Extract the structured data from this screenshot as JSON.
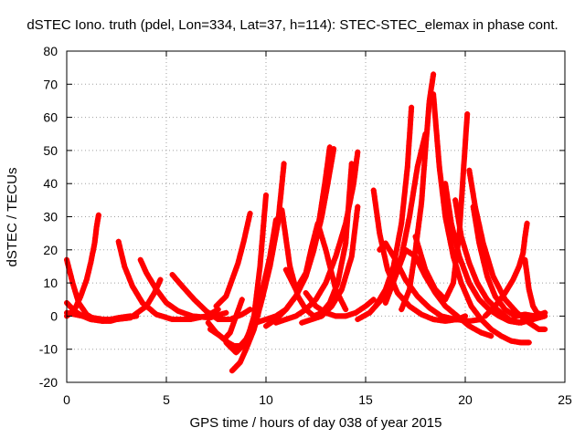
{
  "chart_data": {
    "type": "scatter",
    "title": "dSTEC Iono. truth (pdel, Lon=334, Lat=37, h=114): STEC-STEC_elemax in phase cont.",
    "xlabel": "GPS time / hours of day 038 of year 2015",
    "ylabel": "dSTEC  / TECUs",
    "xlim": [
      0,
      25
    ],
    "ylim": [
      -20,
      80
    ],
    "xticks": [
      0,
      5,
      10,
      15,
      20,
      25
    ],
    "yticks": [
      -20,
      -10,
      0,
      10,
      20,
      30,
      40,
      50,
      60,
      70,
      80
    ],
    "grid": true,
    "marker": "+",
    "color": "#ff0000",
    "arcs": [
      {
        "x": [
          0.0,
          0.3,
          0.6,
          1.0,
          1.4,
          1.8,
          2.2,
          2.8,
          3.5
        ],
        "y": [
          17,
          10,
          4,
          0.5,
          -1,
          -1.5,
          -1.5,
          -0.5,
          0
        ]
      },
      {
        "x": [
          0.0,
          0.4,
          0.8,
          1.2,
          1.8,
          2.6,
          3.2
        ],
        "y": [
          4,
          1.5,
          0,
          -1,
          -1.5,
          -0.5,
          0
        ]
      },
      {
        "x": [
          0.0,
          0.4,
          0.7,
          1.0,
          1.2,
          1.4,
          1.5,
          1.6
        ],
        "y": [
          0,
          2,
          6,
          11,
          16,
          22,
          27,
          30.5
        ]
      },
      {
        "x": [
          0.0,
          0.4,
          0.8,
          1.3,
          1.8,
          2.5,
          3.2,
          4.0,
          4.4,
          4.7
        ],
        "y": [
          1,
          0.5,
          0,
          -0.5,
          -1,
          -1,
          -0.5,
          3,
          7,
          11
        ]
      },
      {
        "x": [
          2.6,
          2.9,
          3.3,
          3.8,
          4.5,
          5.3,
          6.2,
          7.0,
          7.6
        ],
        "y": [
          22.5,
          15,
          9,
          4,
          0.5,
          -1,
          -1,
          0,
          2
        ]
      },
      {
        "x": [
          3.7,
          4.0,
          4.5,
          5.0,
          5.6,
          6.3,
          7.2,
          8.0
        ],
        "y": [
          17,
          13,
          8,
          4,
          1.5,
          0,
          -0.5,
          1
        ]
      },
      {
        "x": [
          5.3,
          5.8,
          6.4,
          7.0,
          7.6,
          8.2,
          8.8,
          9.2
        ],
        "y": [
          12.5,
          9,
          5,
          1.5,
          -1,
          -1,
          0.5,
          2
        ]
      },
      {
        "x": [
          7.1,
          7.5,
          7.9,
          8.2,
          8.5,
          8.8
        ],
        "y": [
          -2,
          -5,
          -7,
          -5,
          0,
          5
        ]
      },
      {
        "x": [
          7.2,
          7.7,
          8.1,
          8.4,
          8.7,
          9.0,
          9.3,
          9.6,
          9.9,
          10.2,
          10.5
        ],
        "y": [
          -4,
          -6,
          -8,
          -9,
          -9,
          -7,
          -3,
          3,
          10,
          18,
          29
        ]
      },
      {
        "x": [
          7.5,
          8.0,
          8.3,
          8.6,
          8.9,
          9.2
        ],
        "y": [
          3,
          6,
          11,
          16,
          23,
          31
        ]
      },
      {
        "x": [
          8.3,
          8.7,
          9.0,
          9.4,
          9.8,
          10.2,
          10.6,
          10.9
        ],
        "y": [
          -16.5,
          -14,
          -10,
          -4,
          5,
          15,
          28,
          46
        ]
      },
      {
        "x": [
          8.0,
          8.5,
          9.0,
          9.4,
          9.7,
          10.0
        ],
        "y": [
          -8,
          -11,
          -8,
          0,
          15,
          36.5
        ]
      },
      {
        "x": [
          9.5,
          10.0,
          10.5,
          11.0,
          11.5,
          12.0,
          12.4,
          12.8,
          13.1,
          13.4
        ],
        "y": [
          -2,
          -1,
          0,
          2,
          6,
          12,
          20,
          30,
          40,
          50.5
        ]
      },
      {
        "x": [
          10.0,
          10.5,
          11.0,
          11.5,
          12.0,
          12.4,
          12.7,
          13.0,
          13.2
        ],
        "y": [
          -3,
          -1,
          2,
          6,
          12,
          20,
          30,
          42,
          51
        ]
      },
      {
        "x": [
          10.5,
          11.0,
          11.5,
          12.0,
          12.5,
          13.0,
          13.5,
          14.0,
          14.4,
          14.6
        ],
        "y": [
          -2,
          -1,
          0,
          2,
          5,
          10,
          18,
          28,
          40,
          49.5
        ]
      },
      {
        "x": [
          10.8,
          11.2,
          11.6,
          12.0,
          12.4,
          12.8,
          13.2,
          13.6,
          14.0,
          14.3
        ],
        "y": [
          32,
          15,
          6,
          2,
          0,
          1,
          4,
          10,
          22,
          46
        ]
      },
      {
        "x": [
          11.0,
          11.5,
          12.0,
          12.3,
          12.6,
          13.0,
          13.5,
          14.0
        ],
        "y": [
          14,
          8,
          13,
          21,
          28,
          20,
          8,
          2
        ]
      },
      {
        "x": [
          12.0,
          12.5,
          13.0,
          13.5,
          14.0,
          14.5,
          15.0,
          15.4
        ],
        "y": [
          7,
          3,
          1,
          0,
          0,
          1,
          3,
          5
        ]
      },
      {
        "x": [
          11.8,
          12.3,
          12.8,
          13.3,
          13.8,
          14.3,
          14.6
        ],
        "y": [
          -2,
          -1,
          0,
          3,
          8,
          18,
          33
        ]
      },
      {
        "x": [
          15.4,
          15.7,
          16.1,
          16.6,
          17.2,
          17.8,
          18.4,
          19.0,
          19.6,
          20.0
        ],
        "y": [
          38,
          25,
          14,
          7,
          3,
          0.5,
          -1,
          -1.5,
          -1,
          0
        ]
      },
      {
        "x": [
          15.7,
          16.0,
          16.5,
          17.0,
          17.6,
          18.2,
          18.8,
          19.5,
          20.2,
          20.8
        ],
        "y": [
          20,
          22,
          17,
          11,
          6,
          2.5,
          0,
          -1,
          -1.5,
          -1
        ]
      },
      {
        "x": [
          14.6,
          15.2,
          15.8,
          16.3,
          16.8,
          17.2,
          17.6,
          18.0
        ],
        "y": [
          -1,
          1,
          5,
          10,
          18,
          30,
          45,
          55
        ]
      },
      {
        "x": [
          15.5,
          16.0,
          16.4,
          16.8,
          17.1,
          17.3
        ],
        "y": [
          3,
          8,
          15,
          28,
          45,
          63
        ]
      },
      {
        "x": [
          16.0,
          16.5,
          17.0,
          17.5,
          18.0,
          18.5,
          19.0,
          19.6,
          20.2,
          20.8,
          21.3
        ],
        "y": [
          4,
          12,
          20,
          18,
          12,
          7,
          3,
          0,
          -3,
          -5,
          -6
        ]
      },
      {
        "x": [
          16.8,
          17.2,
          17.5,
          17.8,
          18.0,
          18.2,
          18.4
        ],
        "y": [
          2,
          8,
          20,
          34,
          50,
          65,
          73
        ]
      },
      {
        "x": [
          18.4,
          18.7,
          19.0,
          19.4,
          19.8,
          20.3,
          20.8,
          21.3,
          21.8,
          22.3,
          22.8,
          23.2
        ],
        "y": [
          67,
          45,
          30,
          18,
          10,
          3,
          -1,
          -4,
          -6,
          -7.5,
          -8,
          -8
        ]
      },
      {
        "x": [
          17.5,
          18.0,
          18.5,
          19.0,
          19.4,
          19.7,
          20.1
        ],
        "y": [
          24,
          14,
          8,
          5,
          10,
          25,
          61
        ]
      },
      {
        "x": [
          19.0,
          19.3,
          19.7,
          20.2,
          20.7,
          21.2,
          21.7,
          22.2,
          22.7,
          23.1
        ],
        "y": [
          40,
          28,
          18,
          10,
          5,
          2,
          0,
          -1.5,
          -2,
          -1
        ]
      },
      {
        "x": [
          19.5,
          19.8,
          20.2,
          20.6,
          21.1,
          21.6,
          22.2,
          22.8,
          23.4,
          24.0
        ],
        "y": [
          35,
          24,
          16,
          10,
          5,
          2,
          -1,
          -2,
          -1,
          0
        ]
      },
      {
        "x": [
          20.2,
          20.5,
          20.9,
          21.4,
          22.0,
          22.6,
          23.2,
          23.7,
          24.0
        ],
        "y": [
          44,
          33,
          22,
          12,
          5,
          1,
          -2,
          -4,
          -4
        ]
      },
      {
        "x": [
          20.4,
          20.7,
          21.1,
          21.5,
          22.0,
          22.5,
          23.0,
          23.5,
          24.0
        ],
        "y": [
          33,
          22,
          12,
          6,
          2,
          0,
          0.5,
          0,
          1
        ]
      },
      {
        "x": [
          21.0,
          21.5,
          22.0,
          22.4,
          22.7,
          22.9,
          23.0,
          23.1
        ],
        "y": [
          0,
          3,
          7,
          11,
          15,
          19,
          24,
          28
        ]
      },
      {
        "x": [
          23.0,
          23.2,
          23.4,
          23.6,
          23.8,
          24.0
        ],
        "y": [
          17,
          8,
          3,
          1,
          0.5,
          1
        ]
      }
    ]
  }
}
